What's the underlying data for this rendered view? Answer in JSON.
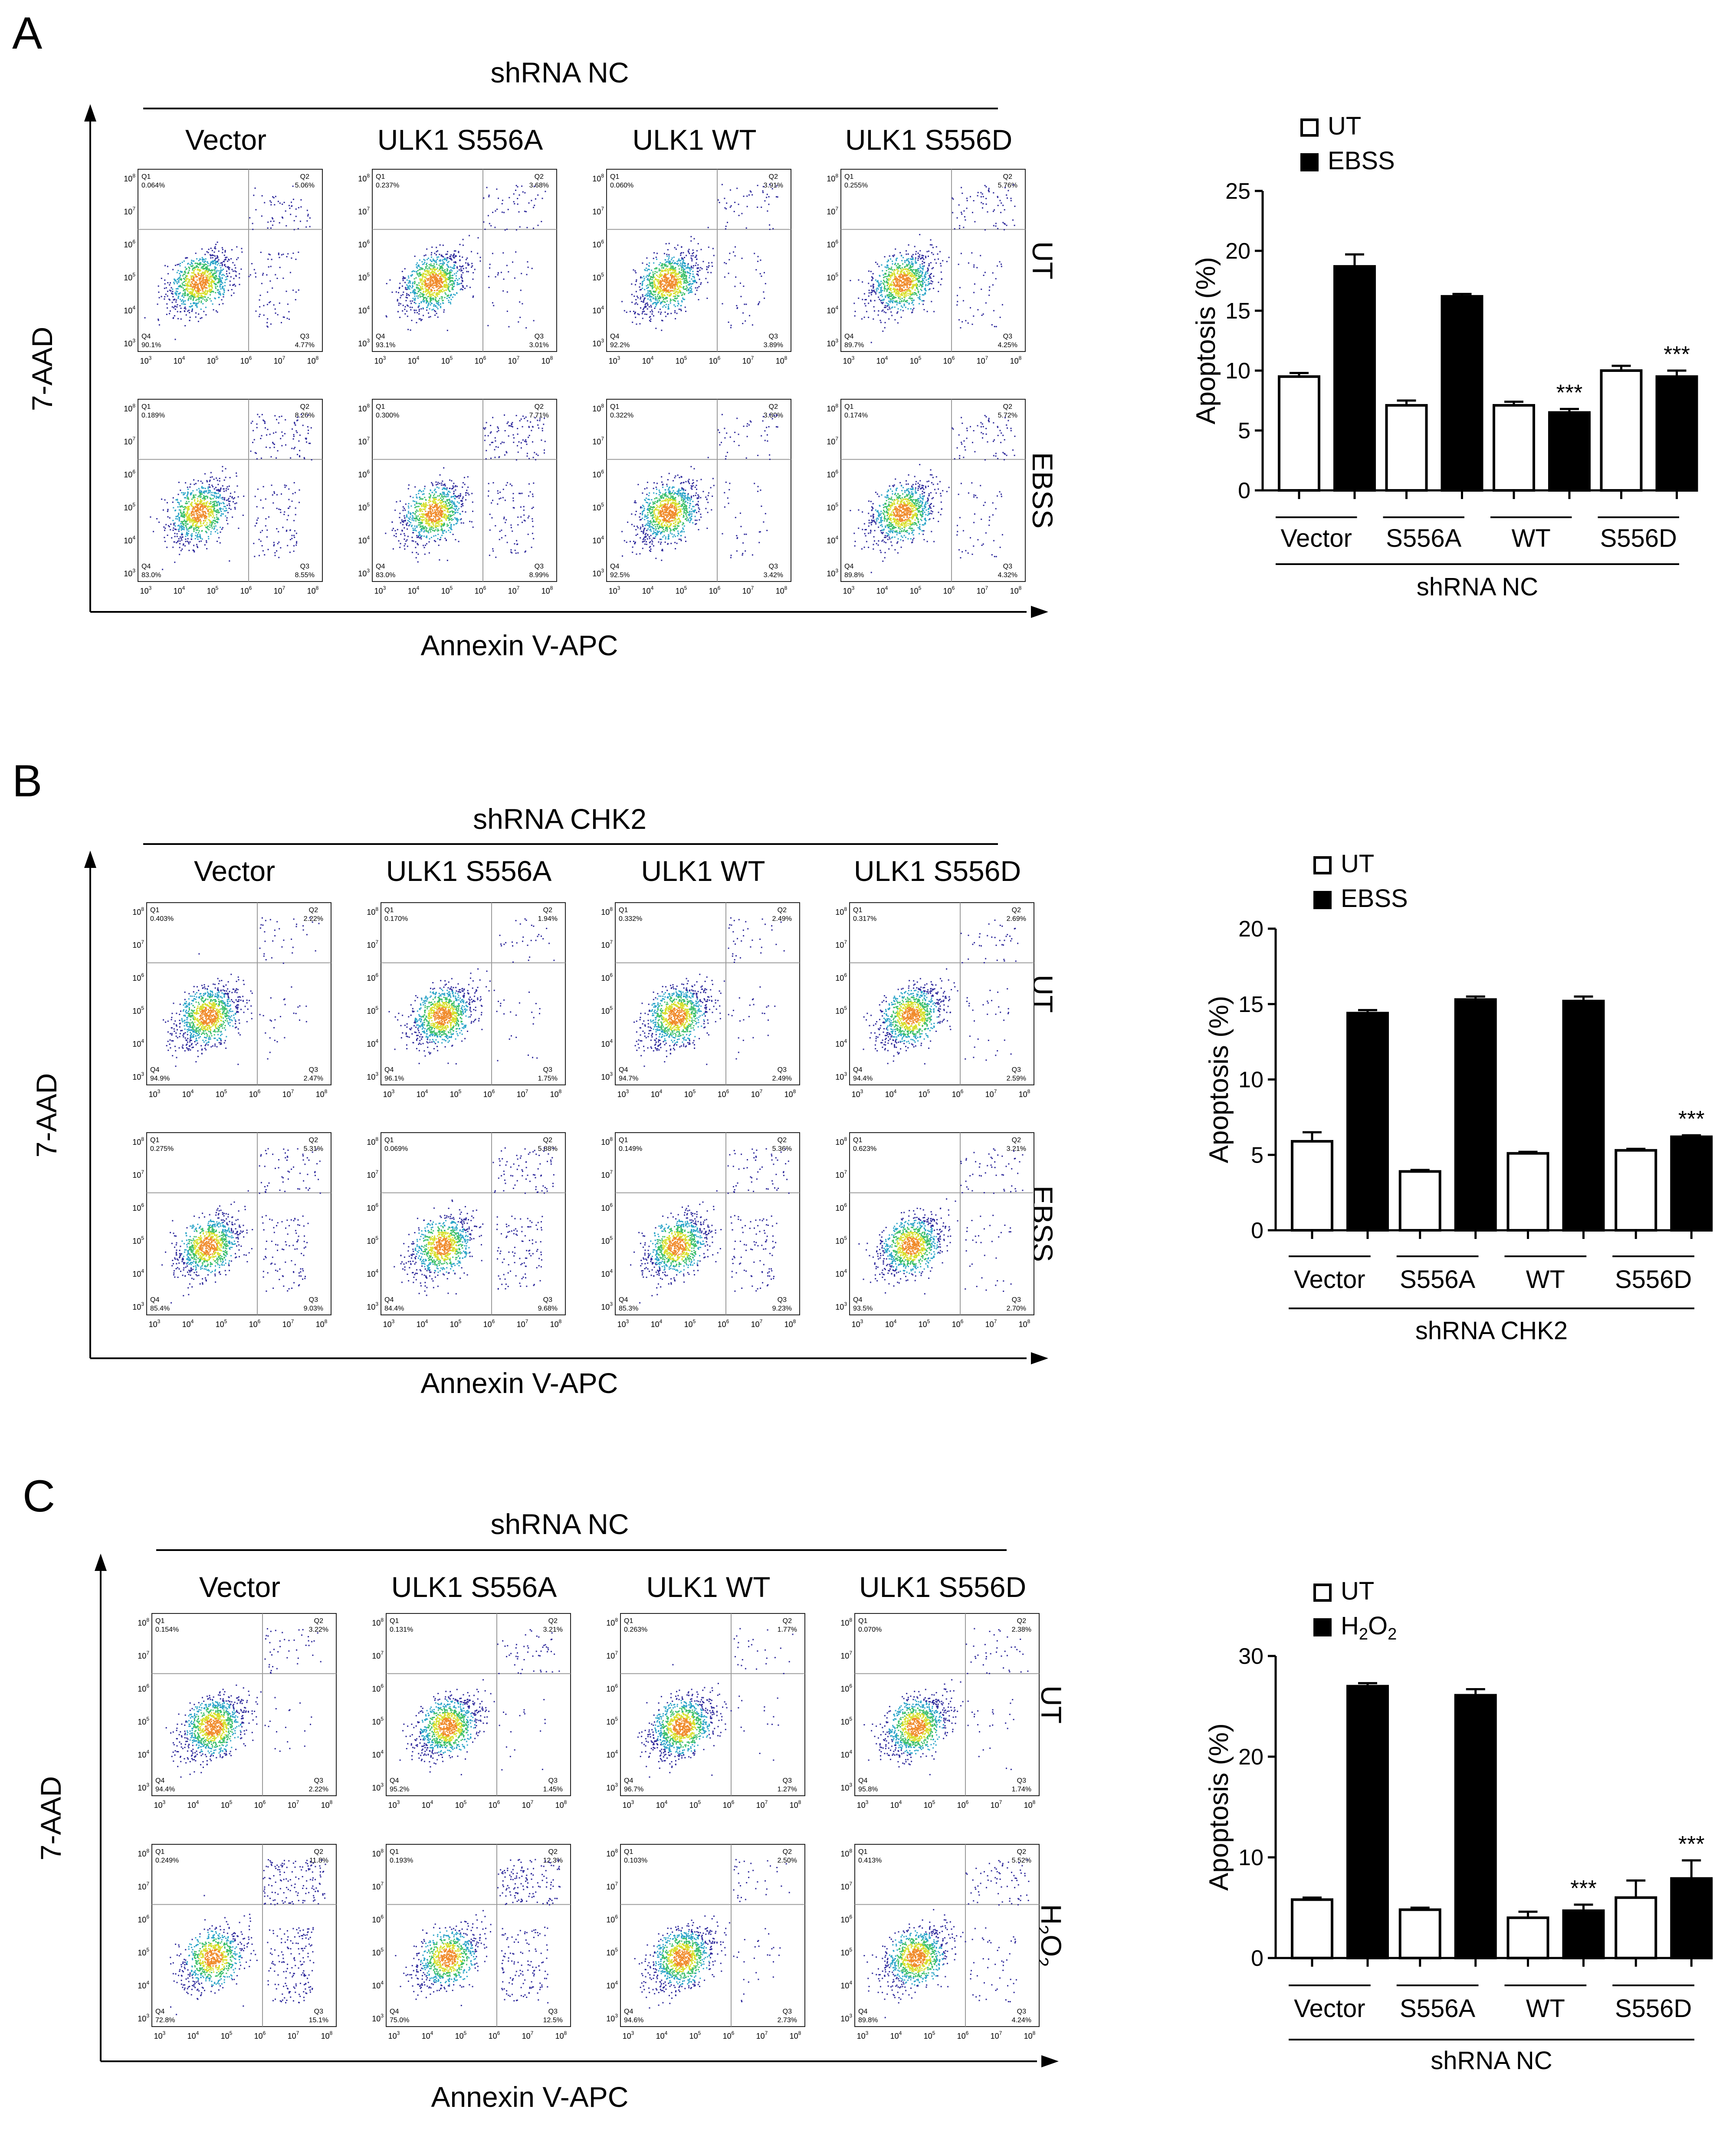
{
  "chart_data": [
    {
      "panel": "A",
      "type": "bar",
      "header": "shRNA NC",
      "flow_columns": [
        "Vector",
        "ULK1 S556A",
        "ULK1 WT",
        "ULK1 S556D"
      ],
      "flow_rows": [
        "UT",
        "EBSS"
      ],
      "flow_xlabel": "Annexin V-APC",
      "flow_ylabel": "7-AAD",
      "flow_quadrants": [
        [
          {
            "Q1": "0.064%",
            "Q2": "5.06%",
            "Q3": "4.77%",
            "Q4": "90.1%"
          },
          {
            "Q1": "0.237%",
            "Q2": "3.68%",
            "Q3": "3.01%",
            "Q4": "93.1%"
          },
          {
            "Q1": "0.060%",
            "Q2": "3.91%",
            "Q3": "3.89%",
            "Q4": "92.2%"
          },
          {
            "Q1": "0.255%",
            "Q2": "5.76%",
            "Q3": "4.25%",
            "Q4": "89.7%"
          }
        ],
        [
          {
            "Q1": "0.189%",
            "Q2": "8.26%",
            "Q3": "8.55%",
            "Q4": "83.0%"
          },
          {
            "Q1": "0.300%",
            "Q2": "7.71%",
            "Q3": "8.99%",
            "Q4": "83.0%"
          },
          {
            "Q1": "0.322%",
            "Q2": "3.80%",
            "Q3": "3.42%",
            "Q4": "92.5%"
          },
          {
            "Q1": "0.174%",
            "Q2": "5.72%",
            "Q3": "4.32%",
            "Q4": "89.8%"
          }
        ]
      ],
      "categories": [
        "Vector",
        "S556A",
        "WT",
        "S556D"
      ],
      "series": [
        {
          "name": "UT",
          "values": [
            9.5,
            7.1,
            7.1,
            10.0
          ],
          "errors": [
            0.3,
            0.4,
            0.3,
            0.4
          ]
        },
        {
          "name": "EBSS",
          "values": [
            18.7,
            16.2,
            6.5,
            9.5
          ],
          "errors": [
            1.0,
            0.2,
            0.3,
            0.5
          ]
        }
      ],
      "significance": [
        "",
        "",
        "***",
        "***"
      ],
      "ylabel": "Apoptosis (%)",
      "xgroup_label": "shRNA NC",
      "ylim": [
        0,
        25
      ],
      "yticks": [
        0,
        5,
        10,
        15,
        20,
        25
      ]
    },
    {
      "panel": "B",
      "type": "bar",
      "header": "shRNA CHK2",
      "flow_columns": [
        "Vector",
        "ULK1 S556A",
        "ULK1 WT",
        "ULK1 S556D"
      ],
      "flow_rows": [
        "UT",
        "EBSS"
      ],
      "flow_xlabel": "Annexin V-APC",
      "flow_ylabel": "7-AAD",
      "flow_quadrants": [
        [
          {
            "Q1": "0.403%",
            "Q2": "2.22%",
            "Q3": "2.47%",
            "Q4": "94.9%"
          },
          {
            "Q1": "0.170%",
            "Q2": "1.94%",
            "Q3": "1.75%",
            "Q4": "96.1%"
          },
          {
            "Q1": "0.332%",
            "Q2": "2.49%",
            "Q3": "2.49%",
            "Q4": "94.7%"
          },
          {
            "Q1": "0.317%",
            "Q2": "2.69%",
            "Q3": "2.59%",
            "Q4": "94.4%"
          }
        ],
        [
          {
            "Q1": "0.275%",
            "Q2": "5.31%",
            "Q3": "9.03%",
            "Q4": "85.4%"
          },
          {
            "Q1": "0.069%",
            "Q2": "5.88%",
            "Q3": "9.68%",
            "Q4": "84.4%"
          },
          {
            "Q1": "0.149%",
            "Q2": "5.36%",
            "Q3": "9.23%",
            "Q4": "85.3%"
          },
          {
            "Q1": "0.623%",
            "Q2": "3.21%",
            "Q3": "2.70%",
            "Q4": "93.5%"
          }
        ]
      ],
      "categories": [
        "Vector",
        "S556A",
        "WT",
        "S556D"
      ],
      "series": [
        {
          "name": "UT",
          "values": [
            5.9,
            3.9,
            5.1,
            5.3
          ],
          "errors": [
            0.6,
            0.1,
            0.1,
            0.1
          ]
        },
        {
          "name": "EBSS",
          "values": [
            14.4,
            15.3,
            15.2,
            6.2
          ],
          "errors": [
            0.2,
            0.2,
            0.3,
            0.1
          ]
        }
      ],
      "significance": [
        "",
        "",
        "",
        "***"
      ],
      "ylabel": "Apoptosis (%)",
      "xgroup_label": "shRNA CHK2",
      "ylim": [
        0,
        20
      ],
      "yticks": [
        0,
        5,
        10,
        15,
        20
      ]
    },
    {
      "panel": "C",
      "type": "bar",
      "header": "shRNA NC",
      "flow_columns": [
        "Vector",
        "ULK1 S556A",
        "ULK1 WT",
        "ULK1 S556D"
      ],
      "flow_rows": [
        "UT",
        "H2O2"
      ],
      "flow_xlabel": "Annexin V-APC",
      "flow_ylabel": "7-AAD",
      "flow_quadrants": [
        [
          {
            "Q1": "0.154%",
            "Q2": "3.22%",
            "Q3": "2.22%",
            "Q4": "94.4%"
          },
          {
            "Q1": "0.131%",
            "Q2": "3.21%",
            "Q3": "1.45%",
            "Q4": "95.2%"
          },
          {
            "Q1": "0.263%",
            "Q2": "1.77%",
            "Q3": "1.27%",
            "Q4": "96.7%"
          },
          {
            "Q1": "0.070%",
            "Q2": "2.38%",
            "Q3": "1.74%",
            "Q4": "95.8%"
          }
        ],
        [
          {
            "Q1": "0.249%",
            "Q2": "11.8%",
            "Q3": "15.1%",
            "Q4": "72.8%"
          },
          {
            "Q1": "0.193%",
            "Q2": "12.3%",
            "Q3": "12.5%",
            "Q4": "75.0%"
          },
          {
            "Q1": "0.103%",
            "Q2": "2.50%",
            "Q3": "2.73%",
            "Q4": "94.6%"
          },
          {
            "Q1": "0.413%",
            "Q2": "5.52%",
            "Q3": "4.24%",
            "Q4": "89.8%"
          }
        ]
      ],
      "categories": [
        "Vector",
        "S556A",
        "WT",
        "S556D"
      ],
      "series": [
        {
          "name": "UT",
          "values": [
            5.8,
            4.8,
            4.0,
            6.0
          ],
          "errors": [
            0.2,
            0.2,
            0.6,
            1.7
          ]
        },
        {
          "name": "H2O2",
          "values": [
            27.0,
            26.1,
            4.7,
            7.9
          ],
          "errors": [
            0.3,
            0.6,
            0.6,
            1.8
          ]
        }
      ],
      "significance": [
        "",
        "",
        "***",
        "***"
      ],
      "ylabel": "Apoptosis (%)",
      "xgroup_label": "shRNA NC",
      "ylim": [
        0,
        30
      ],
      "yticks": [
        0,
        10,
        20,
        30
      ]
    }
  ],
  "flow_axis_ticks": [
    "1",
    "2",
    "3",
    "4",
    "5",
    "6",
    "7",
    "8"
  ],
  "colors": {
    "ut_bar": "#ffffff",
    "treat_bar": "#000000",
    "density": [
      "#2f2a9c",
      "#2aa4c8",
      "#3bbf6a",
      "#d7df2c",
      "#f08a2a"
    ],
    "gate_line": "#9a9a9a"
  }
}
